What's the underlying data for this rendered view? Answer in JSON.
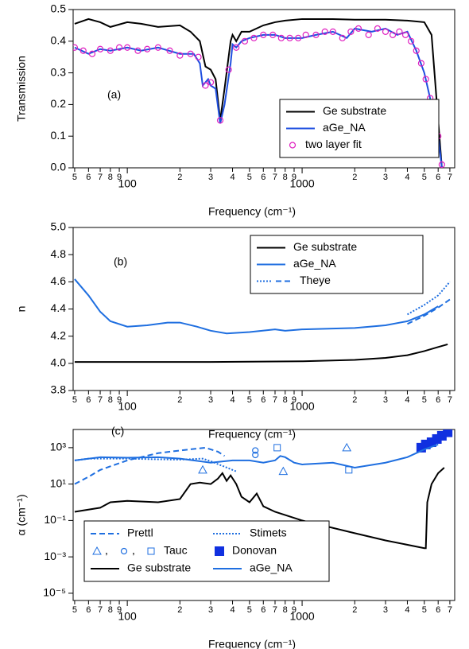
{
  "chart_data": [
    {
      "type": "line",
      "annotation": "(a)",
      "ylabel": "Transmission",
      "xlabel": "Frequency (cm⁻¹)",
      "xscale": "log",
      "xlim": [
        49,
        7460
      ],
      "ylim": [
        0,
        0.5
      ],
      "xticks": [
        {
          "value": 50,
          "label": "5"
        },
        {
          "value": 60,
          "label": "6"
        },
        {
          "value": 70,
          "label": "7"
        },
        {
          "value": 80,
          "label": "8"
        },
        {
          "value": 90,
          "label": "9"
        },
        100,
        {
          "value": 200,
          "label": "2"
        },
        {
          "value": 300,
          "label": "3"
        },
        {
          "value": 400,
          "label": "4"
        },
        {
          "value": 500,
          "label": "5"
        },
        {
          "value": 600,
          "label": "6"
        },
        {
          "value": 700,
          "label": "7"
        },
        {
          "value": 800,
          "label": "8"
        },
        {
          "value": 900,
          "label": "9"
        },
        1000,
        {
          "value": 2000,
          "label": "2"
        },
        {
          "value": 3000,
          "label": "3"
        },
        {
          "value": 4000,
          "label": "4"
        },
        {
          "value": 5000,
          "label": "5"
        },
        {
          "value": 6000,
          "label": "6"
        },
        {
          "value": 7000,
          "label": "7"
        }
      ],
      "yticks": [
        {
          "value": 0,
          "label": "0.0"
        },
        0.1,
        0.2,
        0.3,
        0.4,
        0.5
      ],
      "legend": "right",
      "series": [
        {
          "name": "Ge substrate",
          "color": "#000000",
          "dash": "solid",
          "x": [
            50,
            60,
            70,
            80,
            100,
            120,
            150,
            200,
            230,
            260,
            280,
            300,
            320,
            340,
            360,
            390,
            400,
            420,
            450,
            500,
            600,
            700,
            800,
            1000,
            1500,
            2000,
            3000,
            4000,
            5000,
            5500,
            6000,
            6300
          ],
          "values": [
            0.455,
            0.47,
            0.46,
            0.445,
            0.46,
            0.455,
            0.445,
            0.45,
            0.43,
            0.4,
            0.32,
            0.31,
            0.28,
            0.15,
            0.25,
            0.4,
            0.42,
            0.4,
            0.43,
            0.43,
            0.45,
            0.46,
            0.465,
            0.47,
            0.47,
            0.468,
            0.468,
            0.465,
            0.46,
            0.42,
            0.15,
            0
          ]
        },
        {
          "name": "aGe_NA",
          "color": "#1f4fe0",
          "dash": "solid",
          "x": [
            50,
            60,
            70,
            80,
            100,
            120,
            150,
            200,
            240,
            260,
            270,
            290,
            300,
            320,
            340,
            360,
            390,
            400,
            420,
            450,
            500,
            600,
            700,
            800,
            1000,
            1200,
            1500,
            1800,
            2000,
            2500,
            3000,
            3500,
            4000,
            4500,
            5000,
            5500,
            6000,
            6300
          ],
          "values": [
            0.38,
            0.36,
            0.375,
            0.37,
            0.38,
            0.37,
            0.38,
            0.36,
            0.36,
            0.33,
            0.26,
            0.28,
            0.26,
            0.25,
            0.14,
            0.2,
            0.33,
            0.39,
            0.38,
            0.4,
            0.41,
            0.42,
            0.42,
            0.41,
            0.41,
            0.42,
            0.43,
            0.41,
            0.44,
            0.43,
            0.44,
            0.42,
            0.43,
            0.37,
            0.3,
            0.2,
            0.1,
            0
          ]
        },
        {
          "name": "two layer fit",
          "color": "#e020c0",
          "marker": "circle",
          "x": [
            50,
            56,
            63,
            70,
            80,
            90,
            100,
            115,
            130,
            150,
            175,
            200,
            230,
            255,
            280,
            300,
            340,
            380,
            420,
            470,
            530,
            600,
            680,
            760,
            850,
            950,
            1050,
            1200,
            1350,
            1500,
            1700,
            1900,
            2100,
            2400,
            2700,
            3000,
            3300,
            3600,
            3900,
            4200,
            4500,
            4800,
            5100,
            5400,
            5700,
            6000,
            6300
          ],
          "values": [
            0.38,
            0.37,
            0.36,
            0.375,
            0.37,
            0.38,
            0.38,
            0.37,
            0.375,
            0.38,
            0.37,
            0.355,
            0.36,
            0.35,
            0.26,
            0.27,
            0.15,
            0.31,
            0.38,
            0.4,
            0.41,
            0.42,
            0.42,
            0.41,
            0.41,
            0.41,
            0.42,
            0.42,
            0.43,
            0.43,
            0.41,
            0.43,
            0.44,
            0.42,
            0.44,
            0.43,
            0.42,
            0.43,
            0.42,
            0.4,
            0.37,
            0.33,
            0.28,
            0.22,
            0.16,
            0.1,
            0.01
          ]
        }
      ]
    },
    {
      "type": "line",
      "annotation": "(b)",
      "ylabel": "n",
      "xlabel": "Frequency (cm⁻¹)",
      "xscale": "log",
      "xlim": [
        49,
        7460
      ],
      "ylim": [
        3.8,
        5.0
      ],
      "xticks": [
        {
          "value": 50,
          "label": "5"
        },
        {
          "value": 60,
          "label": "6"
        },
        {
          "value": 70,
          "label": "7"
        },
        {
          "value": 80,
          "label": "8"
        },
        {
          "value": 90,
          "label": "9"
        },
        100,
        {
          "value": 200,
          "label": "2"
        },
        {
          "value": 300,
          "label": "3"
        },
        {
          "value": 400,
          "label": "4"
        },
        {
          "value": 500,
          "label": "5"
        },
        {
          "value": 600,
          "label": "6"
        },
        {
          "value": 700,
          "label": "7"
        },
        {
          "value": 800,
          "label": "8"
        },
        {
          "value": 900,
          "label": "9"
        },
        1000,
        {
          "value": 2000,
          "label": "2"
        },
        {
          "value": 3000,
          "label": "3"
        },
        {
          "value": 4000,
          "label": "4"
        },
        {
          "value": 5000,
          "label": "5"
        },
        {
          "value": 6000,
          "label": "6"
        },
        {
          "value": 7000,
          "label": "7"
        }
      ],
      "yticks": [
        {
          "value": 3.8,
          "label": "3.8"
        },
        {
          "value": 4,
          "label": "4.0"
        },
        4.2,
        4.4,
        4.6,
        4.8,
        {
          "value": 5,
          "label": "5.0"
        }
      ],
      "legend": "upper right",
      "series": [
        {
          "name": "Ge substrate",
          "color": "#000000",
          "dash": "solid",
          "x": [
            50,
            100,
            300,
            1000,
            2000,
            3000,
            4000,
            5000,
            6000,
            6800
          ],
          "values": [
            4.01,
            4.01,
            4.01,
            4.015,
            4.025,
            4.04,
            4.06,
            4.09,
            4.12,
            4.14
          ]
        },
        {
          "name": "aGe_NA",
          "color": "#1f6fe0",
          "dash": "solid",
          "x": [
            50,
            60,
            70,
            80,
            100,
            130,
            170,
            200,
            250,
            300,
            370,
            500,
            700,
            800,
            1000,
            2000,
            3000,
            4000,
            5000,
            6000
          ],
          "values": [
            4.62,
            4.5,
            4.38,
            4.31,
            4.27,
            4.28,
            4.3,
            4.3,
            4.27,
            4.24,
            4.22,
            4.23,
            4.25,
            4.24,
            4.25,
            4.26,
            4.28,
            4.31,
            4.36,
            4.42
          ]
        },
        {
          "name": "Theye",
          "color": "#1f6fe0",
          "parts": [
            {
              "dash": "dotted",
              "x": [
                4000,
                5000,
                6000,
                7000
              ],
              "values": [
                4.36,
                4.43,
                4.5,
                4.6
              ]
            },
            {
              "dash": "dashed",
              "x": [
                4000,
                5000,
                6000,
                7000
              ],
              "values": [
                4.29,
                4.35,
                4.41,
                4.47
              ]
            }
          ]
        }
      ]
    },
    {
      "type": "line",
      "annotation": "(c)",
      "ylabel": "α (cm⁻¹)",
      "xlabel": "Frequency (cm⁻¹)",
      "xscale": "log",
      "yscale": "log",
      "xlim": [
        49,
        7460
      ],
      "ylim": [
        4e-06,
        10000
      ],
      "xticks": [
        {
          "value": 50,
          "label": "5"
        },
        {
          "value": 60,
          "label": "6"
        },
        {
          "value": 70,
          "label": "7"
        },
        {
          "value": 80,
          "label": "8"
        },
        {
          "value": 90,
          "label": "9"
        },
        100,
        {
          "value": 200,
          "label": "2"
        },
        {
          "value": 300,
          "label": "3"
        },
        {
          "value": 400,
          "label": "4"
        },
        {
          "value": 500,
          "label": "5"
        },
        {
          "value": 600,
          "label": "6"
        },
        {
          "value": 700,
          "label": "7"
        },
        {
          "value": 800,
          "label": "8"
        },
        {
          "value": 900,
          "label": "9"
        },
        1000,
        {
          "value": 2000,
          "label": "2"
        },
        {
          "value": 3000,
          "label": "3"
        },
        {
          "value": 4000,
          "label": "4"
        },
        {
          "value": 5000,
          "label": "5"
        },
        {
          "value": 6000,
          "label": "6"
        },
        {
          "value": 7000,
          "label": "7"
        }
      ],
      "yticks": [
        {
          "value": 1e-05,
          "label": "10⁻⁵"
        },
        {
          "value": 0.001,
          "label": "10⁻³"
        },
        {
          "value": 0.1,
          "label": "10⁻¹"
        },
        {
          "value": 10,
          "label": "10¹"
        },
        {
          "value": 1000,
          "label": "10³"
        }
      ],
      "legend": "lower left",
      "legend_columns": 2,
      "legend_separator": ",",
      "series": [
        {
          "name": "Prettl",
          "color": "#1f6fe0",
          "dash": "dashed",
          "x": [
            50,
            60,
            70,
            100,
            150,
            200,
            280,
            330,
            360
          ],
          "values": [
            10,
            25,
            60,
            200,
            500,
            700,
            1000,
            600,
            350
          ]
        },
        {
          "name": "Stimets",
          "color": "#1f6fe0",
          "dash": "dotted",
          "x": [
            50,
            60,
            80,
            100,
            150,
            200,
            270,
            300,
            350,
            420
          ],
          "values": [
            200,
            250,
            250,
            250,
            230,
            220,
            250,
            180,
            100,
            50
          ]
        },
        {
          "name": "Tauc",
          "color": "#1f6fe0",
          "parts": [
            {
              "marker": "triangle",
              "x": [
                270,
                780,
                1800
              ],
              "values": [
                60,
                50,
                1000
              ]
            },
            {
              "marker": "circle",
              "x": [
                540,
                540
              ],
              "values": [
                400,
                700
              ]
            },
            {
              "marker": "square",
              "x": [
                720,
                1850
              ],
              "values": [
                1000,
                60
              ]
            }
          ]
        },
        {
          "name": "Donovan",
          "color": "#1030e0",
          "marker": "filled-square",
          "x": [
            4800,
            5100,
            5500,
            5900,
            6300,
            6800
          ],
          "values": [
            1000,
            1500,
            2000,
            3000,
            4500,
            7000
          ]
        },
        {
          "name": "Ge substrate",
          "color": "#000000",
          "dash": "solid",
          "x": [
            50,
            70,
            80,
            100,
            150,
            200,
            230,
            260,
            300,
            330,
            350,
            370,
            390,
            420,
            450,
            500,
            550,
            600,
            700,
            1000,
            2000,
            3000,
            5000,
            5100,
            5200,
            5500,
            6000,
            6500
          ],
          "values": [
            0.3,
            0.5,
            1,
            1.2,
            1,
            1.5,
            10,
            12,
            10,
            20,
            40,
            15,
            30,
            10,
            2,
            1,
            3,
            0.6,
            0.3,
            0.1,
            0.02,
            0.008,
            0.003,
            0.003,
            1,
            10,
            40,
            80
          ]
        },
        {
          "name": "aGe_NA",
          "color": "#1f6fe0",
          "dash": "solid",
          "x": [
            50,
            70,
            100,
            150,
            200,
            300,
            400,
            500,
            600,
            700,
            750,
            800,
            900,
            1000,
            1500,
            2000,
            3000,
            4000,
            5000,
            6000
          ],
          "values": [
            200,
            300,
            280,
            300,
            250,
            150,
            200,
            200,
            150,
            200,
            350,
            300,
            150,
            120,
            150,
            80,
            150,
            300,
            800,
            1500
          ]
        }
      ]
    }
  ]
}
